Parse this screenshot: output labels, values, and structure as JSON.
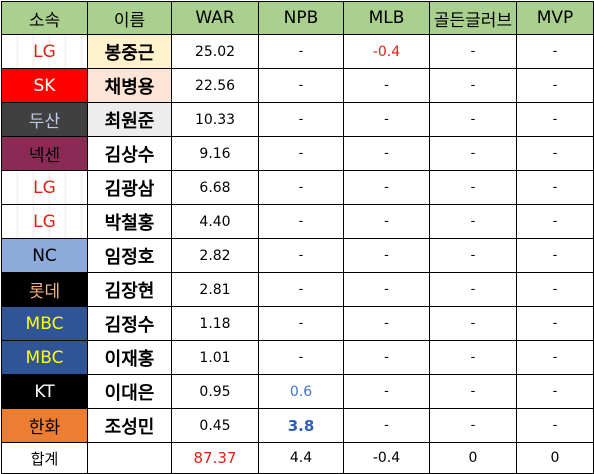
{
  "headers": [
    "소속",
    "이름",
    "WAR",
    "NPB",
    "MLB",
    "골든글러브",
    "MVP"
  ],
  "rows": [
    {
      "team": "LG",
      "team_style": "lg",
      "name": "봉중근",
      "name_hl": "hl1",
      "war": "25.02",
      "npb": "-",
      "mlb": "-0.4",
      "gg": "-",
      "mvp": "-"
    },
    {
      "team": "SK",
      "team_style": "sk",
      "name": "채병용",
      "name_hl": "hl2",
      "war": "22.56",
      "npb": "-",
      "mlb": "-",
      "gg": "-",
      "mvp": "-"
    },
    {
      "team": "두산",
      "team_style": "ds",
      "name": "최원준",
      "name_hl": "hl3",
      "war": "10.33",
      "npb": "-",
      "mlb": "-",
      "gg": "-",
      "mvp": "-"
    },
    {
      "team": "넥센",
      "team_style": "nx",
      "name": "김상수",
      "name_hl": "",
      "war": "9.16",
      "npb": "-",
      "mlb": "-",
      "gg": "-",
      "mvp": "-"
    },
    {
      "team": "LG",
      "team_style": "lg",
      "name": "김광삼",
      "name_hl": "",
      "war": "6.68",
      "npb": "-",
      "mlb": "-",
      "gg": "-",
      "mvp": "-"
    },
    {
      "team": "LG",
      "team_style": "lg",
      "name": "박철홍",
      "name_hl": "",
      "war": "4.40",
      "npb": "-",
      "mlb": "-",
      "gg": "-",
      "mvp": "-"
    },
    {
      "team": "NC",
      "team_style": "nc",
      "name": "임정호",
      "name_hl": "",
      "war": "2.82",
      "npb": "-",
      "mlb": "-",
      "gg": "-",
      "mvp": "-"
    },
    {
      "team": "롯데",
      "team_style": "lt",
      "name": "김장현",
      "name_hl": "",
      "war": "2.81",
      "npb": "-",
      "mlb": "-",
      "gg": "-",
      "mvp": "-"
    },
    {
      "team": "MBC",
      "team_style": "mbc",
      "name": "김정수",
      "name_hl": "",
      "war": "1.18",
      "npb": "-",
      "mlb": "-",
      "gg": "-",
      "mvp": "-"
    },
    {
      "team": "MBC",
      "team_style": "mbc",
      "name": "이재홍",
      "name_hl": "",
      "war": "1.01",
      "npb": "-",
      "mlb": "-",
      "gg": "-",
      "mvp": "-"
    },
    {
      "team": "KT",
      "team_style": "kt",
      "name": "이대은",
      "name_hl": "",
      "war": "0.95",
      "npb": "0.6",
      "mlb": "-",
      "gg": "-",
      "mvp": "-"
    },
    {
      "team": "한화",
      "team_style": "hh",
      "name": "조성민",
      "name_hl": "",
      "war": "0.45",
      "npb": "3.8",
      "mlb": "-",
      "gg": "-",
      "mvp": "-"
    }
  ],
  "total": {
    "label": "합계",
    "war": "87.37",
    "npb": "4.4",
    "mlb": "-0.4",
    "gg": "0",
    "mvp": "0"
  },
  "colors": {
    "header_bg": "#a9d08e",
    "negative": "#e0201b",
    "npb_blue": "#4472c4"
  }
}
